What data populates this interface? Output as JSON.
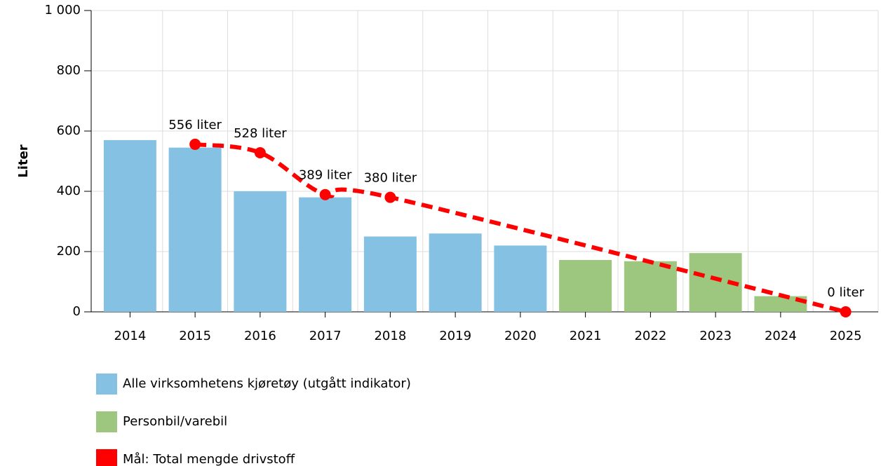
{
  "chart_data": {
    "type": "bar",
    "y_label": "Liter",
    "categories": [
      "2014",
      "2015",
      "2016",
      "2017",
      "2018",
      "2019",
      "2020",
      "2021",
      "2022",
      "2023",
      "2024",
      "2025"
    ],
    "series": [
      {
        "name": "Alle virksomhetens kjøretøy (utgått indikator)",
        "type": "bar",
        "color": "#85c1e2",
        "values": [
          570,
          545,
          400,
          380,
          250,
          260,
          220,
          null,
          null,
          null,
          null,
          null
        ]
      },
      {
        "name": "Personbil/varebil",
        "type": "bar",
        "color": "#9dc67f",
        "values": [
          null,
          null,
          null,
          null,
          null,
          null,
          null,
          172,
          168,
          195,
          52,
          null
        ]
      },
      {
        "name": "Mål: Total mengde drivstoff",
        "type": "line",
        "color": "#ff0000",
        "x": [
          2015,
          2016,
          2017,
          2018,
          2025
        ],
        "values": [
          556,
          528,
          389,
          380,
          0
        ],
        "value_labels": [
          "556 liter",
          "528 liter",
          "389 liter",
          "380 liter",
          "0 liter"
        ]
      }
    ],
    "ylim": [
      0,
      1000
    ],
    "yticks": [
      0,
      200,
      400,
      600,
      800,
      {
        "value": 1000,
        "label": "1 000"
      }
    ],
    "grid": true
  }
}
